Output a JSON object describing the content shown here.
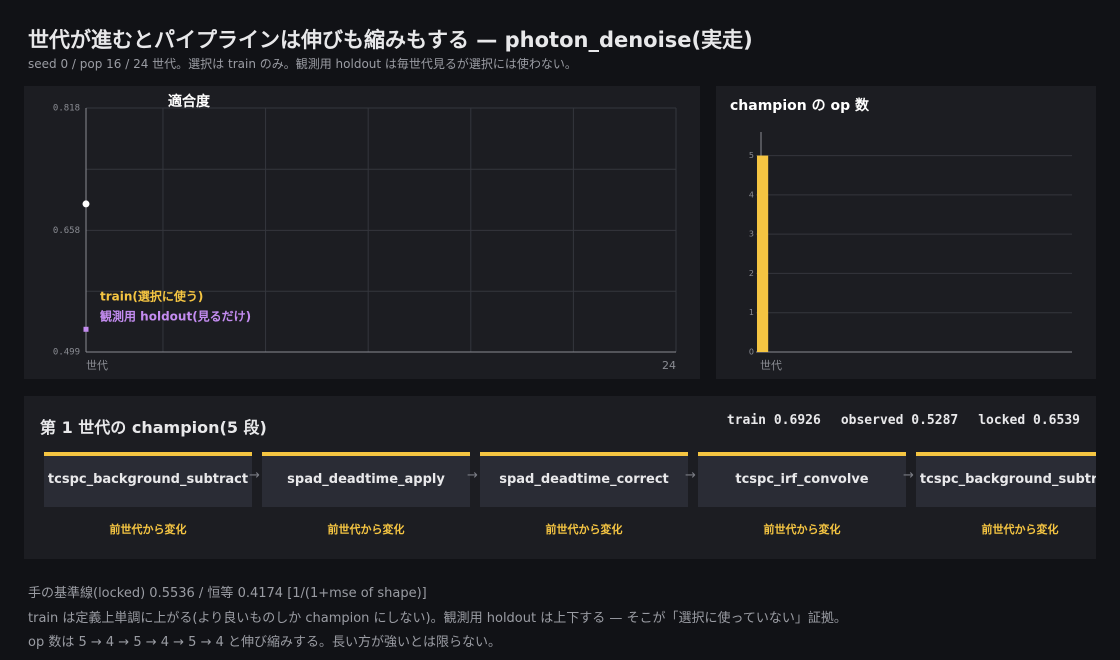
{
  "header": {
    "title": "世代が進むとパイプラインは伸びも縮みもする — photon_denoise(実走)",
    "subtitle": "seed 0 / pop 16 / 24 世代。選択は train のみ。観測用 holdout は毎世代見るが選択には使わない。"
  },
  "chart_data": [
    {
      "type": "line",
      "title": "適合度",
      "x_label": "世代",
      "x": [
        1
      ],
      "xlim": [
        1,
        24
      ],
      "xticks": [
        24
      ],
      "x_grid_step": 4,
      "ylim": [
        0.499,
        0.818
      ],
      "yticks": [
        0.499,
        0.658,
        0.818
      ],
      "grid": true,
      "series": [
        {
          "name": "train(選択に使う)",
          "color": "#f5c542",
          "values": [
            0.6926
          ]
        },
        {
          "name": "観測用 holdout(見るだけ)",
          "color": "#c38cf0",
          "values": [
            0.5287
          ]
        }
      ]
    },
    {
      "type": "bar",
      "title": "champion の op 数",
      "x_label": "世代",
      "x": [
        1
      ],
      "values": [
        5
      ],
      "color": "#f5c542",
      "xlim": [
        0.5,
        24.5
      ],
      "ylim": [
        0,
        5.6
      ],
      "yticks": [
        0,
        1,
        2,
        3,
        4,
        5
      ],
      "grid": true
    }
  ],
  "champion": {
    "title": "第 1 世代の champion(5 段)",
    "metrics": [
      {
        "label": "train",
        "value": 0.6926
      },
      {
        "label": "observed",
        "value": 0.5287
      },
      {
        "label": "locked",
        "value": 0.6539
      }
    ],
    "steps": [
      {
        "name": "tcspc_background_subtract",
        "note": "前世代から変化"
      },
      {
        "name": "spad_deadtime_apply",
        "note": "前世代から変化"
      },
      {
        "name": "spad_deadtime_correct",
        "note": "前世代から変化"
      },
      {
        "name": "tcspc_irf_convolve",
        "note": "前世代から変化"
      },
      {
        "name": "tcspc_background_subtract",
        "note": "前世代から変化"
      }
    ]
  },
  "notes": [
    "手の基準線(locked) 0.5536 / 恒等 0.4174  [1/(1+mse of shape)]",
    "train は定義上単調に上がる(より良いものしか champion にしない)。観測用 holdout は上下する — そこが「選択に使っていない」証拠。",
    "op 数は 5 → 4 → 5 → 4 → 5 → 4 と伸び縮みする。長い方が強いとは限らない。"
  ]
}
